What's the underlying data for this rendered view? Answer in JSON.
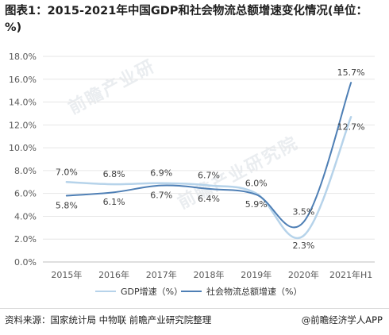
{
  "title": "图表1：2015-2021年中国GDP和社会物流总额增速变化情况(单位：%)",
  "source": "资料来源：国家统计局 中物联 前瞻产业研究院整理",
  "brand": "@前瞻经济学人APP",
  "watermark": [
    "前瞻产业研",
    "前瞻产业研究院"
  ],
  "colors": {
    "gdp": "#b6d3ea",
    "logistics": "#4e7fb5",
    "grid": "#e6e6e6",
    "axis_text": "#595959"
  },
  "chart_data": {
    "type": "line",
    "title": "图表1：2015-2021年中国GDP和社会物流总额增速变化情况(单位：%)",
    "categories": [
      "2015年",
      "2016年",
      "2017年",
      "2018年",
      "2019年",
      "2020年",
      "2021年H1"
    ],
    "ylim": [
      0,
      18
    ],
    "yticks": [
      "0.0%",
      "2.0%",
      "4.0%",
      "6.0%",
      "8.0%",
      "10.0%",
      "12.0%",
      "14.0%",
      "16.0%",
      "18.0%"
    ],
    "grid": true,
    "legend_position": "bottom",
    "series": [
      {
        "name": "GDP增速（%）",
        "values": [
          7.0,
          6.8,
          6.9,
          6.7,
          6.0,
          2.3,
          12.7
        ],
        "labels": [
          "7.0%",
          "6.8%",
          "6.9%",
          "6.7%",
          "6.0%",
          "2.3%",
          "12.7%"
        ]
      },
      {
        "name": "社会物流总额增速（%）",
        "values": [
          5.8,
          6.1,
          6.7,
          6.4,
          5.9,
          3.5,
          15.7
        ],
        "labels": [
          "5.8%",
          "6.1%",
          "6.7%",
          "6.4%",
          "5.9%",
          "3.5%",
          "15.7%"
        ]
      }
    ]
  }
}
